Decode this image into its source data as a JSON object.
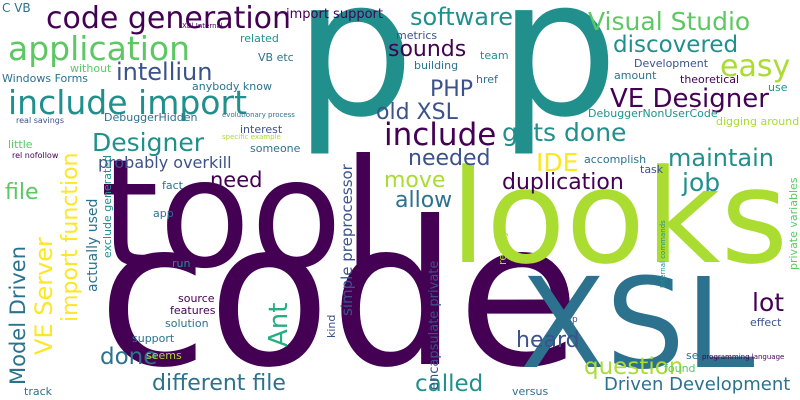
{
  "words": {
    "p1": "p",
    "p2": "p",
    "code": "code",
    "tool": "tool",
    "looks": "looks",
    "xsl": "XSL",
    "code_generation": "code generation",
    "application": "application",
    "include_import": "include import",
    "include": "include",
    "software": "software",
    "visual_studio": "Visual Studio",
    "discovered": "discovered",
    "easy": "easy",
    "ve_designer": "VE Designer",
    "intelliun": "intelliun",
    "php": "PHP",
    "sounds": "sounds",
    "old_xsl": "old XSL",
    "designer": "Designer",
    "gets_done": "gets done",
    "needed": "needed",
    "ide": "IDE",
    "maintain": "maintain",
    "duplication": "duplication",
    "job": "job",
    "move": "move",
    "allow": "allow",
    "need": "need",
    "file": "file",
    "probably_overkill": "probably overkill",
    "import_function": "import function",
    "model_driven": "Model Driven",
    "ve_server": "VE Server",
    "ant": "Ant",
    "heard": "heard",
    "question": "question",
    "done": "done",
    "different_file": "different file",
    "called": "called",
    "driven_development": "Driven Development",
    "lot": "lot",
    "c_vb": "C VB",
    "import_support": "import support",
    "related": "related",
    "vb_etc": "VB etc",
    "metrics": "metrics",
    "team": "team",
    "building": "building",
    "href": "href",
    "development": "Development",
    "theoretical": "theoretical",
    "amount": "amount",
    "use": "use",
    "without": "without",
    "windows_forms": "Windows Forms",
    "anybody_know": "anybody know",
    "debuggerhidden": "DebuggerHidden",
    "debuggernonusercode": "DebuggerNonUserCode",
    "digging_around": "digging around",
    "interest": "interest",
    "evolutionary_process": "evolutionary process",
    "real_savings": "real savings",
    "specific_example": "specific example",
    "little": "little",
    "rel_nofollow": "rel nofollow",
    "someone": "someone",
    "accomplish": "accomplish",
    "task": "task",
    "fact": "fact",
    "app": "app",
    "run": "run",
    "source": "source",
    "features": "features",
    "solution": "solution",
    "support": "support",
    "seems": "seems",
    "track": "track",
    "versus": "versus",
    "see": "see",
    "programming_language": "programming language",
    "found": "found",
    "effect": "effect",
    "private_variables": "private variables",
    "actually_used": "actually used",
    "exclude_generated": "exclude generated",
    "simple_preprocessor": "simple preprocessor",
    "kind": "kind",
    "encapsulate_private": "encapsulate private",
    "reality": "reality",
    "internal_commands": "Internal commands",
    "xbl_internal": "XBl Internal",
    "small_p": "p"
  }
}
